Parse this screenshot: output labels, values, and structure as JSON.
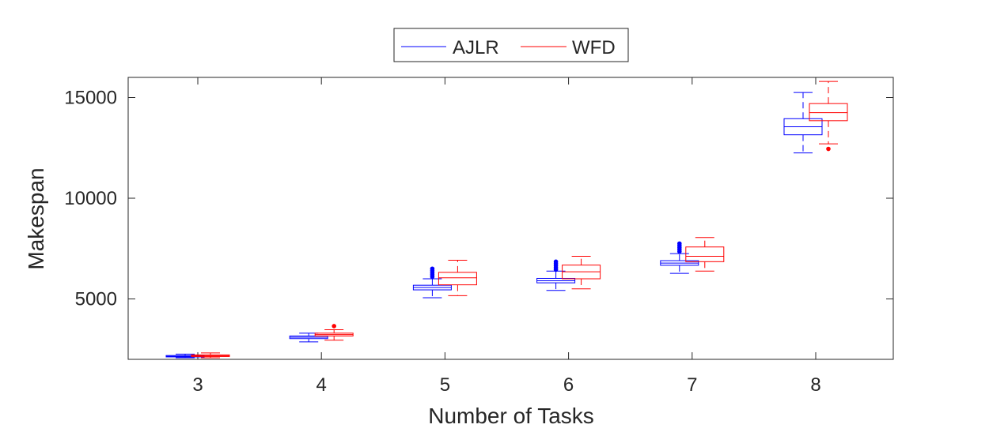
{
  "chart_data": {
    "type": "box",
    "xlabel": "Number of Tasks",
    "ylabel": "Makespan",
    "categories": [
      "3",
      "4",
      "5",
      "6",
      "7",
      "8"
    ],
    "ylim": [
      2000,
      16000
    ],
    "yticks": [
      5000,
      10000,
      15000
    ],
    "ytick_labels": [
      "5000",
      "10000",
      "15000"
    ],
    "grid": false,
    "legend_position": "top-center, outside",
    "series": [
      {
        "name": "AJLR",
        "color": "#0000ff",
        "boxes": [
          {
            "category": "3",
            "min": 2080,
            "q1": 2120,
            "median": 2150,
            "q3": 2190,
            "max": 2260,
            "outliers": []
          },
          {
            "category": "4",
            "min": 2870,
            "q1": 3030,
            "median": 3100,
            "q3": 3160,
            "max": 3300,
            "outliers": []
          },
          {
            "category": "5",
            "min": 5060,
            "q1": 5450,
            "median": 5570,
            "q3": 5680,
            "max": 6000,
            "outliers": [
              6100,
              6200,
              6300,
              6400,
              6500
            ]
          },
          {
            "category": "6",
            "min": 5420,
            "q1": 5800,
            "median": 5900,
            "q3": 6020,
            "max": 6380,
            "outliers": [
              6450,
              6550,
              6650,
              6750,
              6850
            ]
          },
          {
            "category": "7",
            "min": 6270,
            "q1": 6670,
            "median": 6780,
            "q3": 6900,
            "max": 7250,
            "outliers": [
              7350,
              7450,
              7550,
              7650,
              7750
            ]
          },
          {
            "category": "8",
            "min": 12250,
            "q1": 13150,
            "median": 13550,
            "q3": 13950,
            "max": 15250,
            "outliers": []
          }
        ]
      },
      {
        "name": "WFD",
        "color": "#ff0000",
        "boxes": [
          {
            "category": "3",
            "min": 2080,
            "q1": 2140,
            "median": 2180,
            "q3": 2220,
            "max": 2320,
            "outliers": []
          },
          {
            "category": "4",
            "min": 2950,
            "q1": 3160,
            "median": 3230,
            "q3": 3300,
            "max": 3470,
            "outliers": [
              3650
            ]
          },
          {
            "category": "5",
            "min": 5160,
            "q1": 5700,
            "median": 6050,
            "q3": 6320,
            "max": 6920,
            "outliers": []
          },
          {
            "category": "6",
            "min": 5500,
            "q1": 6000,
            "median": 6350,
            "q3": 6680,
            "max": 7120,
            "outliers": []
          },
          {
            "category": "7",
            "min": 6380,
            "q1": 6850,
            "median": 7120,
            "q3": 7580,
            "max": 8050,
            "outliers": []
          },
          {
            "category": "8",
            "min": 12700,
            "q1": 13850,
            "median": 14250,
            "q3": 14700,
            "max": 15800,
            "outliers": [
              12450
            ]
          }
        ]
      }
    ]
  }
}
